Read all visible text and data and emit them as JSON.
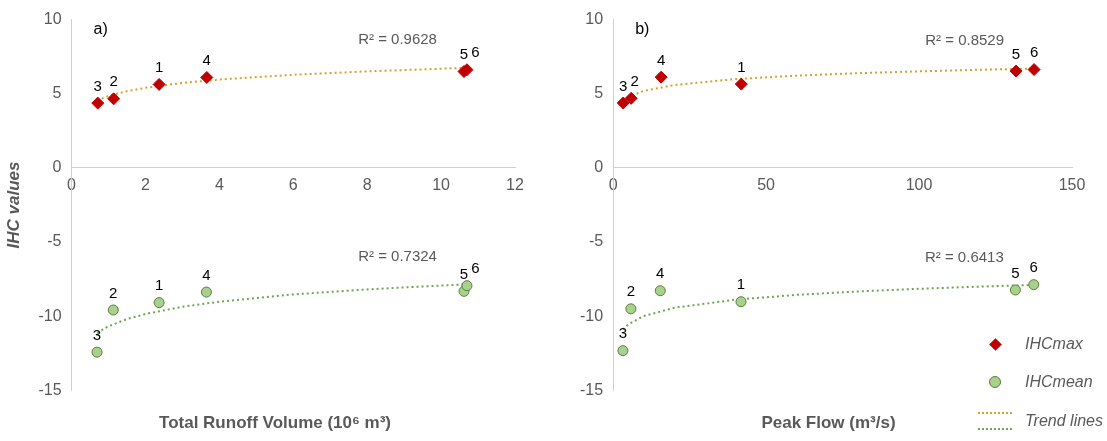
{
  "chart_data": [
    {
      "type": "scatter",
      "title": "a)",
      "xlabel": "Total Runoff Volume (10⁶ m³)",
      "ylabel": "IHC values",
      "xlim": [
        0,
        12
      ],
      "xticks": [
        0,
        2,
        4,
        6,
        8,
        10,
        12
      ],
      "ylim": [
        -15,
        10
      ],
      "yticks": [
        -15,
        -10,
        -5,
        0,
        5,
        10
      ],
      "legend": false,
      "series": [
        {
          "marker": "diamond",
          "color": "#c00000",
          "x": [
            0.71,
            1.14,
            2.37,
            3.66,
            10.62,
            10.7
          ],
          "values": [
            4.37,
            4.66,
            5.63,
            6.1,
            6.5,
            6.62
          ]
        },
        {
          "marker": "circle",
          "color": "#a9d18e",
          "x": [
            0.69,
            1.13,
            2.37,
            3.65,
            10.62,
            10.7
          ],
          "values": [
            -12.42,
            -9.58,
            -9.08,
            -8.37,
            -8.32,
            -7.94
          ]
        },
        {
          "type": "line",
          "marker": "none",
          "line_style": "dotted",
          "color": "#d4a429",
          "x": [
            0.69,
            1,
            1.5,
            2,
            3,
            4,
            6,
            8,
            10.7
          ],
          "values": [
            4.55,
            4.85,
            5.17,
            5.4,
            5.73,
            5.96,
            6.28,
            6.51,
            6.75
          ]
        },
        {
          "type": "line",
          "marker": "none",
          "line_style": "dotted",
          "color": "#6aa84f",
          "x": [
            0.69,
            1,
            1.5,
            2,
            3,
            4,
            6,
            8,
            10.7
          ],
          "values": [
            -11.13,
            -10.68,
            -10.19,
            -9.85,
            -9.36,
            -9.02,
            -8.53,
            -8.19,
            -7.84
          ]
        }
      ],
      "annotations": [
        "R² = 0.9628",
        "R² = 0.7324",
        {
          "text": "3",
          "x": 0.71,
          "y": 4.37
        },
        {
          "text": "2",
          "x": 1.14,
          "y": 4.66
        },
        {
          "text": "1",
          "x": 2.37,
          "y": 5.63
        },
        {
          "text": "4",
          "x": 3.66,
          "y": 6.1
        },
        {
          "text": "5",
          "x": 10.62,
          "y": 6.5
        },
        {
          "text": "6",
          "x": 10.7,
          "y": 6.62
        },
        {
          "text": "3",
          "x": 0.69,
          "y": -12.42
        },
        {
          "text": "2",
          "x": 1.13,
          "y": -9.58
        },
        {
          "text": "1",
          "x": 2.37,
          "y": -9.08
        },
        {
          "text": "4",
          "x": 3.65,
          "y": -8.37
        },
        {
          "text": "5",
          "x": 10.62,
          "y": -8.32
        },
        {
          "text": "6",
          "x": 10.7,
          "y": -7.94
        }
      ]
    },
    {
      "type": "scatter",
      "title": "b)",
      "xlabel": "Peak Flow (m³/s)",
      "xlim": [
        0,
        150
      ],
      "xticks": [
        0,
        50,
        100,
        150
      ],
      "ylim": [
        -15,
        10
      ],
      "yticks": [
        -15,
        -10,
        -5,
        0,
        5,
        10
      ],
      "legend": "bottom right",
      "series": [
        {
          "name": "IHCmax",
          "marker": "diamond",
          "color": "#c00000",
          "x": [
            3.3,
            5.9,
            15.7,
            41.9,
            131.7,
            137.6
          ],
          "values": [
            4.38,
            4.69,
            6.12,
            5.65,
            6.53,
            6.63
          ]
        },
        {
          "name": "IHCmean",
          "marker": "circle",
          "color": "#a9d18e",
          "x": [
            3.2,
            5.8,
            15.4,
            41.8,
            131.5,
            137.5
          ],
          "values": [
            -12.32,
            -9.5,
            -8.28,
            -9.02,
            -8.23,
            -7.87
          ]
        },
        {
          "type": "line",
          "name": "Trend lines",
          "marker": "none",
          "line_style": "dotted",
          "color": "#d4a429",
          "x": [
            3.3,
            5,
            10,
            20,
            40,
            60,
            80,
            100,
            120,
            137.6
          ],
          "values": [
            4.55,
            4.79,
            5.19,
            5.59,
            5.99,
            6.22,
            6.39,
            6.51,
            6.62,
            6.7
          ]
        },
        {
          "type": "line",
          "marker": "none",
          "line_style": "dotted",
          "color": "#6aa84f",
          "x": [
            3.2,
            5,
            10,
            20,
            40,
            60,
            80,
            100,
            120,
            137.5
          ],
          "values": [
            -10.9,
            -10.54,
            -9.99,
            -9.43,
            -8.88,
            -8.56,
            -8.33,
            -8.15,
            -8.0,
            -7.89
          ]
        }
      ],
      "annotations": [
        "R² = 0.8529",
        "R² = 0.6413",
        {
          "text": "3",
          "x": 3.3,
          "y": 4.38
        },
        {
          "text": "2",
          "x": 5.9,
          "y": 4.69
        },
        {
          "text": "4",
          "x": 15.7,
          "y": 6.12
        },
        {
          "text": "1",
          "x": 41.9,
          "y": 5.65
        },
        {
          "text": "5",
          "x": 131.7,
          "y": 6.53
        },
        {
          "text": "6",
          "x": 137.6,
          "y": 6.63
        },
        {
          "text": "3",
          "x": 3.2,
          "y": -12.32
        },
        {
          "text": "2",
          "x": 5.8,
          "y": -9.5
        },
        {
          "text": "4",
          "x": 15.4,
          "y": -8.28
        },
        {
          "text": "1",
          "x": 41.8,
          "y": -9.02
        },
        {
          "text": "5",
          "x": 131.5,
          "y": -8.23
        },
        {
          "text": "6",
          "x": 137.5,
          "y": -7.87
        }
      ]
    }
  ]
}
